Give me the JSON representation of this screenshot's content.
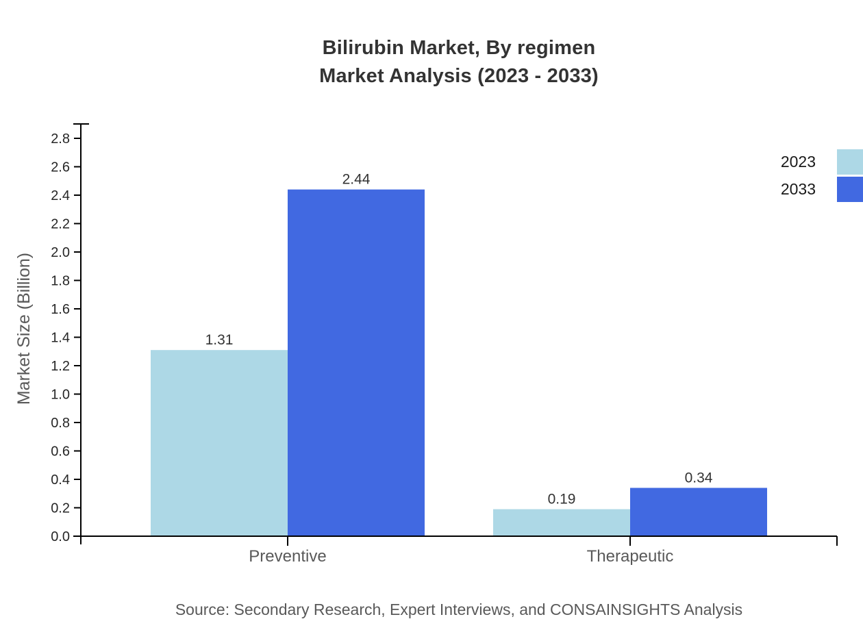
{
  "header": {
    "title": "Bilirubin Market, By regimen",
    "subtitle": "Market Analysis (2023 - 2033)"
  },
  "legend": [
    {
      "label": "2023",
      "color": "#ADD8E6"
    },
    {
      "label": "2033",
      "color": "#4169E1"
    }
  ],
  "chart_data": {
    "type": "bar",
    "categories": [
      "Preventive",
      "Therapeutic"
    ],
    "series": [
      {
        "name": "2023",
        "color": "#ADD8E6",
        "values": [
          1.31,
          0.19
        ]
      },
      {
        "name": "2033",
        "color": "#4169E1",
        "values": [
          2.44,
          0.34
        ]
      }
    ],
    "title": "Bilirubin Market, By regimen",
    "subtitle": "Market Analysis (2023 - 2033)",
    "xlabel": "",
    "ylabel": "Market Size (Billion)",
    "ylim": [
      0,
      2.9
    ],
    "ytick_max": 2.8,
    "ytick_step": 0.2,
    "grid": false,
    "value_labels": true,
    "legend_position": "top-right",
    "axis_color": "#000000",
    "tick_label_color": "#262626",
    "value_label_color": "#333333",
    "category_label_color": "#595959"
  },
  "footer": {
    "source": "Source: Secondary Research, Expert Interviews, and CONSAINSIGHTS Analysis"
  }
}
